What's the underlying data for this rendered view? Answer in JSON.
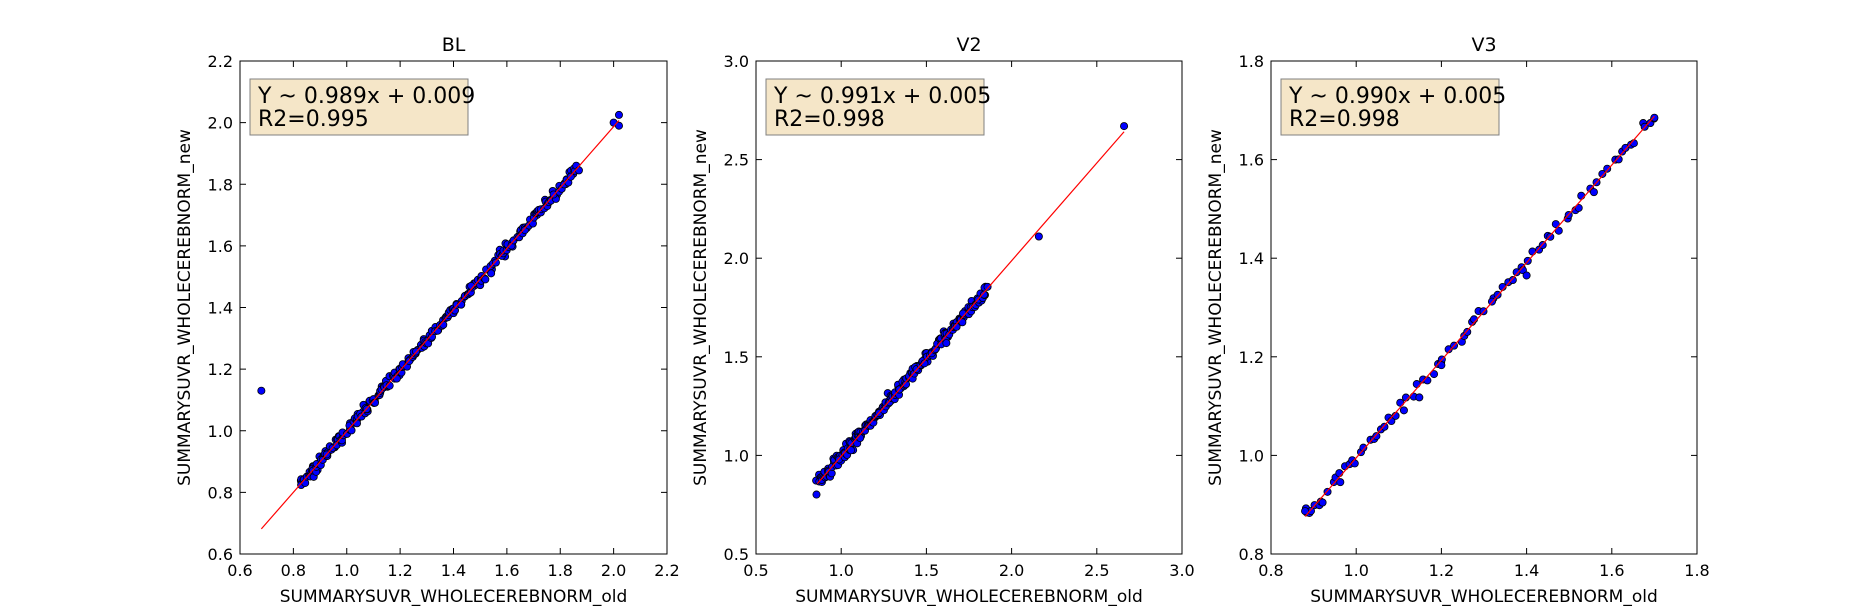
{
  "chart_data": [
    {
      "type": "scatter",
      "title": "BL",
      "xlabel": "SUMMARYSUVR_WHOLECEREBNORM_old",
      "ylabel": "SUMMARYSUVR_WHOLECEREBNORM_new",
      "xlim": [
        0.6,
        2.2
      ],
      "ylim": [
        0.6,
        2.2
      ],
      "xticks": [
        "0.6",
        "0.8",
        "1.0",
        "1.2",
        "1.4",
        "1.6",
        "1.8",
        "2.0",
        "2.2"
      ],
      "yticks": [
        "0.6",
        "0.8",
        "1.0",
        "1.2",
        "1.4",
        "1.6",
        "1.8",
        "2.0",
        "2.2"
      ],
      "annotation": [
        "Y ~ 0.989x + 0.009",
        "R2=0.995"
      ],
      "fit": {
        "slope": 0.989,
        "intercept": 0.009,
        "x_range": [
          0.68,
          2.02
        ]
      },
      "scatter_x_range": [
        0.83,
        1.86
      ],
      "scatter_count": 260,
      "extra_points": [
        [
          0.68,
          1.13
        ],
        [
          2.0,
          2.0
        ],
        [
          2.02,
          2.025
        ],
        [
          2.02,
          1.99
        ],
        [
          1.86,
          1.86
        ],
        [
          1.87,
          1.845
        ]
      ],
      "grid": false
    },
    {
      "type": "scatter",
      "title": "V2",
      "xlabel": "SUMMARYSUVR_WHOLECEREBNORM_old",
      "ylabel": "SUMMARYSUVR_WHOLECEREBNORM_new",
      "xlim": [
        0.5,
        3.0
      ],
      "ylim": [
        0.5,
        3.0
      ],
      "xticks": [
        "0.5",
        "1.0",
        "1.5",
        "2.0",
        "2.5",
        "3.0"
      ],
      "yticks": [
        "0.5",
        "1.0",
        "1.5",
        "2.0",
        "2.5",
        "3.0"
      ],
      "annotation": [
        "Y ~ 0.991x + 0.005",
        "R2=0.998"
      ],
      "fit": {
        "slope": 0.991,
        "intercept": 0.005,
        "x_range": [
          0.86,
          2.66
        ]
      },
      "scatter_x_range": [
        0.86,
        1.86
      ],
      "scatter_count": 230,
      "extra_points": [
        [
          2.16,
          2.11
        ],
        [
          2.66,
          2.67
        ]
      ],
      "grid": false
    },
    {
      "type": "scatter",
      "title": "V3",
      "xlabel": "SUMMARYSUVR_WHOLECEREBNORM_old",
      "ylabel": "SUMMARYSUVR_WHOLECEREBNORM_new",
      "xlim": [
        0.8,
        1.8
      ],
      "ylim": [
        0.8,
        1.8
      ],
      "xticks": [
        "0.8",
        "1.0",
        "1.2",
        "1.4",
        "1.6",
        "1.8"
      ],
      "yticks": [
        "0.8",
        "1.0",
        "1.2",
        "1.4",
        "1.6",
        "1.8"
      ],
      "annotation": [
        "Y ~ 0.990x + 0.005",
        "R2=0.998"
      ],
      "fit": {
        "slope": 0.99,
        "intercept": 0.005,
        "x_range": [
          0.88,
          1.7
        ]
      },
      "scatter_x_range": [
        0.88,
        1.7
      ],
      "scatter_count": 85,
      "extra_points": [
        [
          0.88,
          0.887
        ],
        [
          1.7,
          1.685
        ],
        [
          1.4,
          1.365
        ],
        [
          1.2,
          1.183
        ]
      ],
      "grid": false
    }
  ],
  "colors": {
    "points_fill": "#0000ff",
    "points_edge": "#000000",
    "fit_line": "#ff0000",
    "annotation_bg": "#f5e6c8",
    "annotation_border": "#808080"
  }
}
